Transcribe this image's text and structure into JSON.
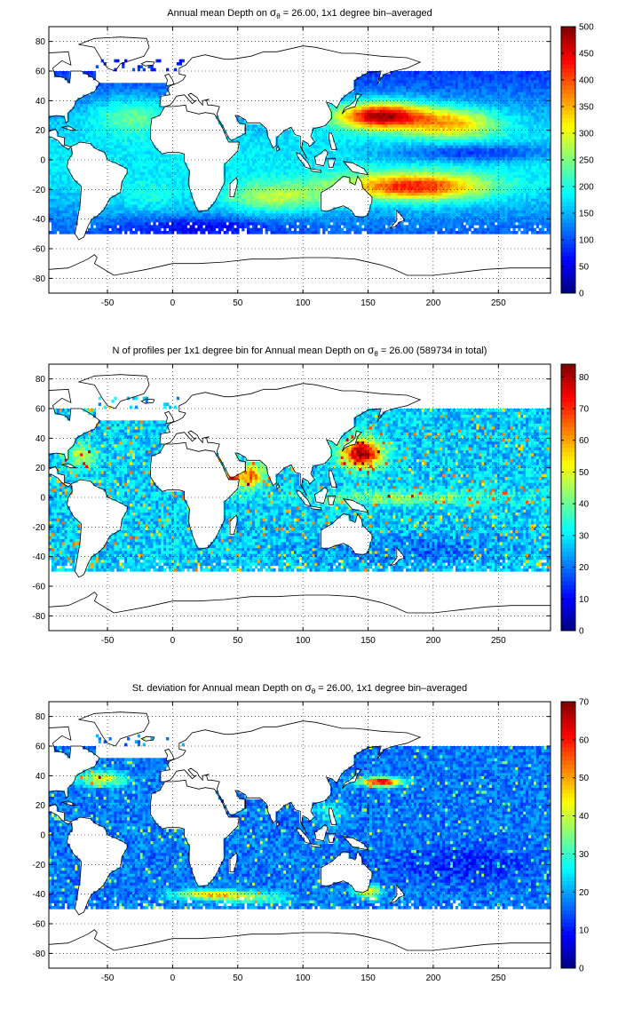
{
  "colors": {
    "land": "#ffffff",
    "coast": "#000000",
    "grid": "#000000",
    "jet_low": "#00008f",
    "jet_high": "#800000"
  },
  "chart_data": [
    {
      "type": "heatmap",
      "title_parts": {
        "pre": "Annual mean Depth on ",
        "sym": "σ",
        "sub": "θ",
        "post": " = 26.00, 1x1 degree bin–averaged"
      },
      "xlim": [
        -95,
        290
      ],
      "ylim": [
        -90,
        90
      ],
      "xticks": [
        -50,
        0,
        50,
        100,
        150,
        200,
        250
      ],
      "yticks": [
        80,
        60,
        40,
        20,
        0,
        -20,
        -40,
        -60,
        -80
      ],
      "grid": true,
      "colormap": "jet",
      "clim": [
        0,
        500
      ],
      "cticks": [
        500,
        450,
        400,
        350,
        300,
        250,
        200,
        150,
        100,
        50,
        0
      ],
      "field_description": "depth of isopycnal; maxima near 30N 130-190E and 20S 150-250E"
    },
    {
      "type": "heatmap",
      "title_parts": {
        "pre": "N of profiles per 1x1 degree bin for Annual mean Depth on ",
        "sym": "σ",
        "sub": "θ",
        "post": " = 26.00 (589734 in total)"
      },
      "xlim": [
        -95,
        290
      ],
      "ylim": [
        -90,
        90
      ],
      "xticks": [
        -50,
        0,
        50,
        100,
        150,
        200,
        250
      ],
      "yticks": [
        80,
        60,
        40,
        20,
        0,
        -20,
        -40,
        -60,
        -80
      ],
      "grid": true,
      "colormap": "jet",
      "clim": [
        0,
        84
      ],
      "cticks": [
        80,
        70,
        60,
        50,
        40,
        30,
        20,
        10,
        0
      ],
      "total": 589734
    },
    {
      "type": "heatmap",
      "title_parts": {
        "pre": "St. deviation for Annual mean Depth on ",
        "sym": "σ",
        "sub": "θ",
        "post": " = 26.00, 1x1 degree bin–averaged"
      },
      "xlim": [
        -95,
        290
      ],
      "ylim": [
        -90,
        90
      ],
      "xticks": [
        -50,
        0,
        50,
        100,
        150,
        200,
        250
      ],
      "yticks": [
        80,
        60,
        40,
        20,
        0,
        -20,
        -40,
        -60,
        -80
      ],
      "grid": true,
      "colormap": "jet",
      "clim": [
        0,
        70
      ],
      "cticks": [
        70,
        60,
        50,
        40,
        30,
        20,
        10,
        0
      ]
    }
  ]
}
